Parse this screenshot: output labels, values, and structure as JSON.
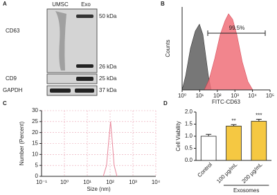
{
  "panel_labels": [
    "A",
    "B",
    "C",
    "D"
  ],
  "blot": {
    "lanes": [
      "UMSC",
      "Exo"
    ],
    "proteins": [
      "CD63",
      "CD9",
      "GAPDH"
    ],
    "markers": [
      "50 kDa",
      "26 kDa",
      "25 kDa",
      "37 kDa"
    ]
  },
  "chart_data": [
    {
      "type": "flow",
      "xlabel": "FITC-CD63",
      "ylabel": "Counts",
      "annotation": "99.5%",
      "log_x": true,
      "xlim": [
        1,
        100000
      ],
      "xticks": [
        {
          "value": 1,
          "label": "10⁰"
        },
        {
          "value": 10,
          "label": "10¹"
        },
        {
          "value": 100,
          "label": "10²"
        },
        {
          "value": 1000,
          "label": "10³"
        },
        {
          "value": 10000,
          "label": "10⁴"
        },
        {
          "value": 100000,
          "label": "10⁵"
        }
      ]
    },
    {
      "type": "line",
      "xlabel": "Size (nm)",
      "ylabel": "Number (Percent)",
      "log_x": true,
      "grid": true,
      "x": [
        50,
        70,
        90,
        105,
        120,
        150,
        200
      ],
      "series": [
        {
          "color": "#e8869a",
          "values": [
            0,
            5,
            18,
            25,
            18,
            5,
            0
          ]
        }
      ],
      "xlim": [
        0.1,
        10000
      ],
      "xticks": [
        {
          "value": 0.1,
          "label": "10⁻¹"
        },
        {
          "value": 1,
          "label": "10⁰"
        },
        {
          "value": 10,
          "label": "10¹"
        },
        {
          "value": 100,
          "label": "10²"
        },
        {
          "value": 1000,
          "label": "10³"
        },
        {
          "value": 10000,
          "label": "10⁴"
        }
      ],
      "ylim": [
        0,
        30
      ],
      "yticks": [
        0,
        5,
        10,
        15,
        20,
        25,
        30
      ]
    },
    {
      "type": "bar",
      "ylabel": "Cell Viability",
      "group_label": "Exosomes",
      "categories": [
        "Control",
        "100 μg/mL",
        "200 μg/mL"
      ],
      "values": [
        1.0,
        1.42,
        1.62
      ],
      "errors": [
        0.08,
        0.06,
        0.08
      ],
      "colors": [
        "#ffffff",
        "#f5c842",
        "#f5c842"
      ],
      "significance": [
        null,
        "**",
        "***"
      ],
      "ylim": [
        0,
        2
      ],
      "yticks": [
        {
          "value": 0,
          "label": "0.0"
        },
        {
          "value": 0.5,
          "label": "0.5"
        },
        {
          "value": 1,
          "label": "1.0"
        },
        {
          "value": 1.5,
          "label": "1.5"
        },
        {
          "value": 2,
          "label": "2.0"
        }
      ]
    }
  ]
}
